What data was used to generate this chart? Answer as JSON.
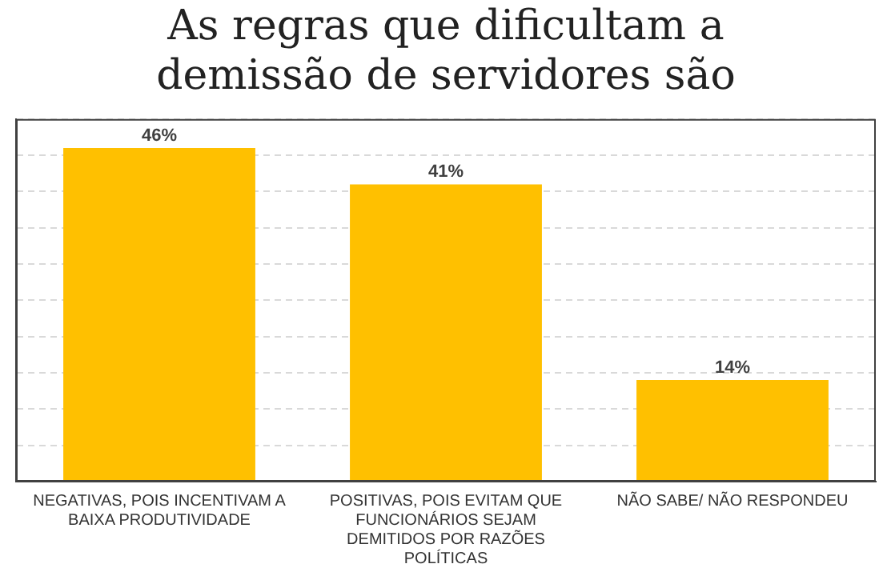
{
  "chart_data": {
    "type": "bar",
    "title": "As regras que dificultam a demissão de servidores são",
    "categories": [
      "NEGATIVAS, POIS INCENTIVAM A BAIXA PRODUTIVIDADE",
      "POSITIVAS, POIS EVITAM QUE FUNCIONÁRIOS SEJAM DEMITIDOS POR RAZÕES POLÍTICAS",
      "NÃO SABE/ NÃO RESPONDEU"
    ],
    "values": [
      46,
      41,
      14
    ],
    "value_labels": [
      "46%",
      "41%",
      "14%"
    ],
    "color": "#ffc000",
    "ylim": [
      0,
      50
    ],
    "yticks": [
      {
        "value": 0,
        "label": null
      },
      {
        "value": 5,
        "label": null
      },
      {
        "value": 10,
        "label": null
      },
      {
        "value": 15,
        "label": null
      },
      {
        "value": 20,
        "label": null
      },
      {
        "value": 25,
        "label": null
      },
      {
        "value": 30,
        "label": null
      },
      {
        "value": 35,
        "label": null
      },
      {
        "value": 40,
        "label": null
      },
      {
        "value": 45,
        "label": null
      },
      {
        "value": 50,
        "label": null
      }
    ],
    "grid": "y",
    "tick_labels": "x"
  }
}
